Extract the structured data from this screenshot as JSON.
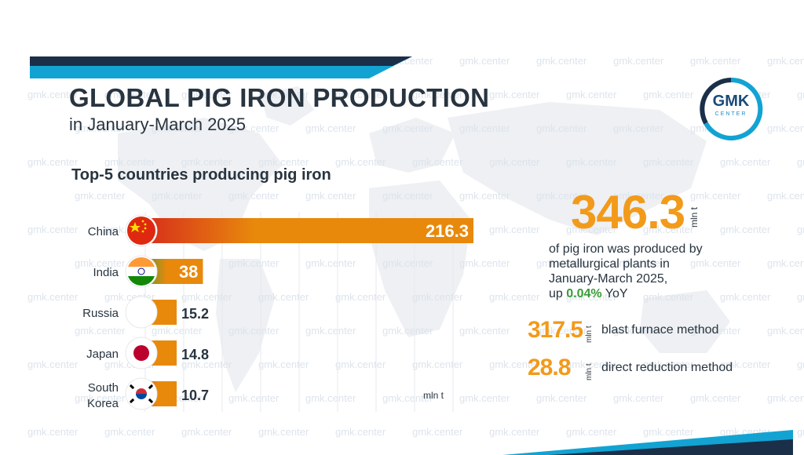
{
  "header": {
    "title": "GLOBAL PIG IRON PRODUCTION",
    "subtitle": "in January-March 2025"
  },
  "logo": {
    "text": "GMK",
    "sub": "CENTER"
  },
  "watermark": {
    "text": "gmk.center"
  },
  "colors": {
    "accent": "#f29a1a",
    "bar_orange": "#e8890c",
    "bar_red": "#d6281c",
    "navy": "#1b2f48",
    "teal": "#12a3d3",
    "growth_green": "#3a9a3a"
  },
  "chart_data": {
    "type": "bar",
    "orientation": "horizontal",
    "title": "Top-5 countries producing pig iron",
    "categories": [
      "China",
      "India",
      "Russia",
      "Japan",
      "South Korea"
    ],
    "category_lines": [
      [
        "China"
      ],
      [
        "India"
      ],
      [
        "Russia"
      ],
      [
        "Japan"
      ],
      [
        "South",
        "Korea"
      ]
    ],
    "values": [
      216.3,
      38,
      15.2,
      14.8,
      10.7
    ],
    "value_labels": [
      "216.3",
      "38",
      "15.2",
      "14.8",
      "10.7"
    ],
    "unit_label": "mln t",
    "flags": [
      "china-flag",
      "india-flag",
      "russia-flag",
      "japan-flag",
      "south-korea-flag"
    ],
    "grid": true
  },
  "summary": {
    "total_value": "346.3",
    "total_unit": "mln t",
    "desc_line1": "of pig iron was produced by",
    "desc_line2": "metallurgical plants in",
    "desc_line3": "January-March 2025,",
    "desc_up": "up ",
    "desc_pct": "0.04%",
    "desc_yoy": " YoY"
  },
  "methods": [
    {
      "value": "317.5",
      "unit": "mln t",
      "label": "blast furnace method"
    },
    {
      "value": "28.8",
      "unit": "mln t",
      "label": "direct reduction method"
    }
  ]
}
